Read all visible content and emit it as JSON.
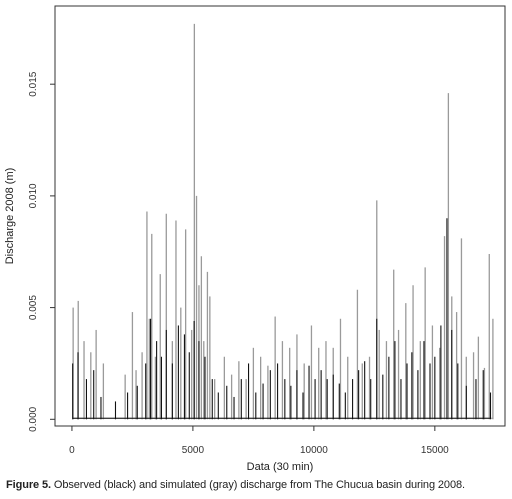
{
  "caption": {
    "label": "Figure 5.",
    "text": " Observed (black) and simulated (gray) discharge from The Chucua basin during 2008."
  },
  "chart_data": {
    "type": "line",
    "xlabel": "Data (30 min)",
    "ylabel": "Discharge 2008 (m)",
    "xlim": [
      -700,
      17900
    ],
    "ylim": [
      -0.0003,
      0.0185
    ],
    "xticks": [
      0,
      5000,
      10000,
      15000
    ],
    "xtick_labels": [
      "0",
      "5000",
      "10000",
      "15000"
    ],
    "yticks": [
      0.0,
      0.005,
      0.01,
      0.015
    ],
    "ytick_labels": [
      "0.000",
      "0.005",
      "0.010",
      "0.015"
    ],
    "grid": false,
    "series": [
      {
        "color": "#111111",
        "x": [
          30,
          250,
          600,
          900,
          1200,
          1800,
          2300,
          2700,
          3050,
          3250,
          3500,
          3700,
          3900,
          4150,
          4400,
          4650,
          4850,
          5050,
          5250,
          5500,
          5800,
          6050,
          6400,
          6700,
          7000,
          7300,
          7600,
          7900,
          8200,
          8500,
          8800,
          9050,
          9300,
          9550,
          9800,
          10050,
          10300,
          10550,
          10800,
          11050,
          11300,
          11600,
          11850,
          12100,
          12350,
          12600,
          12850,
          13100,
          13350,
          13600,
          13850,
          14050,
          14300,
          14550,
          14800,
          15000,
          15250,
          15500,
          15700,
          15950,
          16300,
          16700,
          17000,
          17300
        ],
        "y": [
          0.0025,
          0.003,
          0.0018,
          0.0022,
          0.001,
          0.0008,
          0.0012,
          0.0015,
          0.0025,
          0.0045,
          0.0035,
          0.0028,
          0.004,
          0.0025,
          0.0042,
          0.0038,
          0.003,
          0.0044,
          0.0035,
          0.0028,
          0.0018,
          0.0012,
          0.0015,
          0.001,
          0.0018,
          0.0025,
          0.0012,
          0.0016,
          0.0022,
          0.0025,
          0.0018,
          0.0015,
          0.0022,
          0.0012,
          0.0024,
          0.0018,
          0.0022,
          0.0018,
          0.002,
          0.0016,
          0.0012,
          0.0018,
          0.0022,
          0.0026,
          0.0018,
          0.0045,
          0.002,
          0.0028,
          0.0035,
          0.0018,
          0.0025,
          0.003,
          0.0022,
          0.0035,
          0.0025,
          0.0028,
          0.0042,
          0.009,
          0.004,
          0.0025,
          0.0015,
          0.0018,
          0.0022,
          0.0012
        ]
      },
      {
        "color": "#9a9a9a",
        "x": [
          50,
          260,
          500,
          780,
          1000,
          1300,
          2200,
          2500,
          2650,
          2900,
          3100,
          3200,
          3300,
          3450,
          3650,
          3900,
          4150,
          4300,
          4500,
          4700,
          4950,
          5060,
          5150,
          5250,
          5350,
          5450,
          5600,
          5700,
          5900,
          6300,
          6600,
          6900,
          7200,
          7500,
          7800,
          8100,
          8400,
          8700,
          9000,
          9300,
          9600,
          9900,
          10200,
          10500,
          10800,
          11100,
          11400,
          11800,
          12000,
          12300,
          12600,
          12700,
          13000,
          13300,
          13500,
          13800,
          14100,
          14400,
          14600,
          14900,
          15200,
          15400,
          15560,
          15700,
          15900,
          16100,
          16300,
          16600,
          16800,
          17050,
          17250,
          17400
        ],
        "y": [
          0.005,
          0.0053,
          0.0035,
          0.003,
          0.004,
          0.0025,
          0.002,
          0.0048,
          0.0022,
          0.003,
          0.0093,
          0.0045,
          0.0083,
          0.0028,
          0.0065,
          0.0092,
          0.0035,
          0.0089,
          0.005,
          0.0085,
          0.004,
          0.0177,
          0.01,
          0.006,
          0.0073,
          0.0035,
          0.0066,
          0.0055,
          0.0018,
          0.0028,
          0.002,
          0.0026,
          0.0018,
          0.0032,
          0.0028,
          0.0024,
          0.0046,
          0.0035,
          0.0032,
          0.0038,
          0.0025,
          0.0042,
          0.0032,
          0.0035,
          0.0032,
          0.0045,
          0.0028,
          0.0058,
          0.0025,
          0.0028,
          0.0098,
          0.004,
          0.0035,
          0.0067,
          0.004,
          0.0052,
          0.006,
          0.0035,
          0.0068,
          0.0042,
          0.0032,
          0.0082,
          0.0146,
          0.0055,
          0.0048,
          0.0081,
          0.0028,
          0.003,
          0.0037,
          0.0023,
          0.0074,
          0.0045
        ]
      }
    ]
  }
}
